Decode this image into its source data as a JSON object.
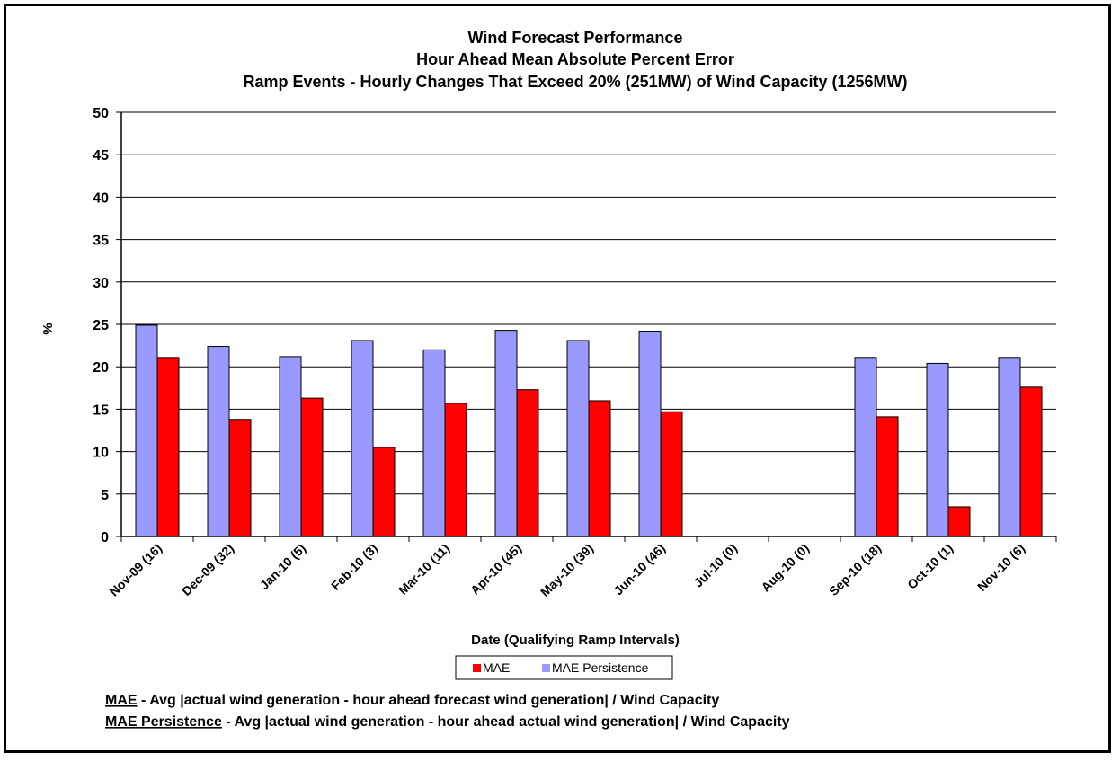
{
  "chart_data": {
    "type": "bar",
    "title_lines": [
      "Wind Forecast Performance",
      "Hour Ahead Mean Absolute Percent Error",
      "Ramp Events - Hourly Changes That Exceed 20% (251MW) of Wind Capacity (1256MW)"
    ],
    "xlabel": "Date (Qualifying Ramp Intervals)",
    "ylabel": "%",
    "ylim": [
      0,
      50
    ],
    "yticks": [
      "0",
      "5",
      "10",
      "15",
      "20",
      "25",
      "30",
      "35",
      "40",
      "45",
      "50"
    ],
    "grid": true,
    "legend_position": "bottom-center",
    "categories": [
      "Nov-09 (16)",
      "Dec-09 (32)",
      "Jan-10 (5)",
      "Feb-10 (3)",
      "Mar-10 (11)",
      "Apr-10 (45)",
      "May-10 (39)",
      "Jun-10 (46)",
      "Jul-10 (0)",
      "Aug-10 (0)",
      "Sep-10 (18)",
      "Oct-10 (1)",
      "Nov-10 (6)"
    ],
    "series": [
      {
        "name": "MAE Persistence",
        "color": "#9999ff",
        "values": [
          24.9,
          22.4,
          21.2,
          23.1,
          22.0,
          24.3,
          23.1,
          24.2,
          0,
          0,
          21.1,
          20.4,
          21.1
        ]
      },
      {
        "name": "MAE",
        "color": "#ff0000",
        "values": [
          21.1,
          13.8,
          16.3,
          10.5,
          15.7,
          17.3,
          16.0,
          14.7,
          0,
          0,
          14.1,
          3.5,
          17.6
        ]
      }
    ],
    "legend": [
      {
        "label": "MAE",
        "color": "#ff0000"
      },
      {
        "label": "MAE Persistence",
        "color": "#9999ff"
      }
    ]
  },
  "notes": [
    {
      "term": "MAE",
      "text": " - Avg |actual wind generation - hour ahead forecast wind generation| / Wind Capacity"
    },
    {
      "term": "MAE Persistence",
      "text": " - Avg |actual wind generation - hour ahead actual wind generation| / Wind Capacity"
    }
  ]
}
